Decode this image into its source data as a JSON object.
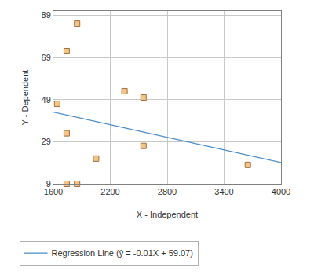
{
  "chart_data": {
    "type": "scatter",
    "x_label": "X - Independent",
    "y_label": "Y - Dependent",
    "xlim": [
      1600,
      4000
    ],
    "xticks": [
      1600,
      2200,
      2800,
      3400,
      4000
    ],
    "ylim": [
      9,
      91
    ],
    "yticks": [
      9,
      29,
      49,
      69,
      89
    ],
    "grid": true,
    "legend": "bottom",
    "series": [
      {
        "type": "scatter",
        "color": "#f2c488",
        "marker": "square",
        "x": [
          1640,
          1740,
          1850,
          1740,
          1740,
          1850,
          2050,
          2350,
          2550,
          2550,
          3650
        ],
        "values": [
          47,
          72,
          85,
          33,
          9,
          9,
          21,
          53,
          50,
          27,
          18
        ]
      },
      {
        "type": "line",
        "name": "Regression Line (ŷ = -0.01X + 59.07)",
        "color": "#4a8cc8",
        "line_style": "solid",
        "slope": -0.01,
        "intercept": 59.07
      }
    ]
  }
}
